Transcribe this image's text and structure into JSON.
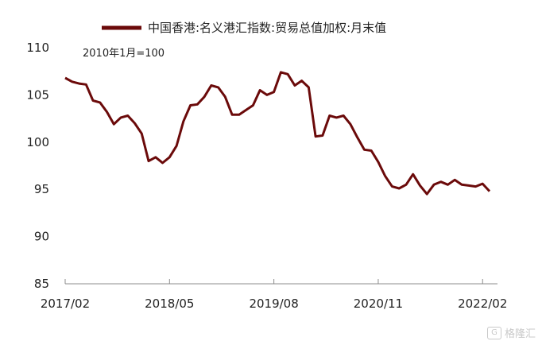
{
  "chart_data": {
    "type": "line",
    "series": [
      {
        "name": "中国香港:名义港汇指数:贸易总值加权:月末值",
        "color": "#6b0a0a",
        "values": [
          106.8,
          106.4,
          106.2,
          106.1,
          104.4,
          104.2,
          103.2,
          101.9,
          102.6,
          102.8,
          102.0,
          100.9,
          98.0,
          98.4,
          97.8,
          98.4,
          99.6,
          102.2,
          103.9,
          104.0,
          104.8,
          106.0,
          105.8,
          104.8,
          102.9,
          102.9,
          103.4,
          103.9,
          105.5,
          105.0,
          105.3,
          107.4,
          107.2,
          106.0,
          106.5,
          105.8,
          100.6,
          100.7,
          102.8,
          102.6,
          102.8,
          101.9,
          100.5,
          99.2,
          99.1,
          97.9,
          96.4,
          95.3,
          95.1,
          95.5,
          96.6,
          95.4,
          94.5,
          95.5,
          95.8,
          95.5,
          96.0,
          95.5,
          95.4,
          95.3,
          95.6,
          94.8
        ]
      }
    ],
    "note": "2010年1月=100",
    "x_ticks": [
      "2017/02",
      "2018/05",
      "2019/08",
      "2020/11",
      "2022/02"
    ],
    "y_ticks": [
      "85",
      "90",
      "95",
      "100",
      "105",
      "110"
    ],
    "ylim": [
      85,
      110
    ],
    "legend_position": "top",
    "grid": false
  },
  "watermark": "格隆汇"
}
